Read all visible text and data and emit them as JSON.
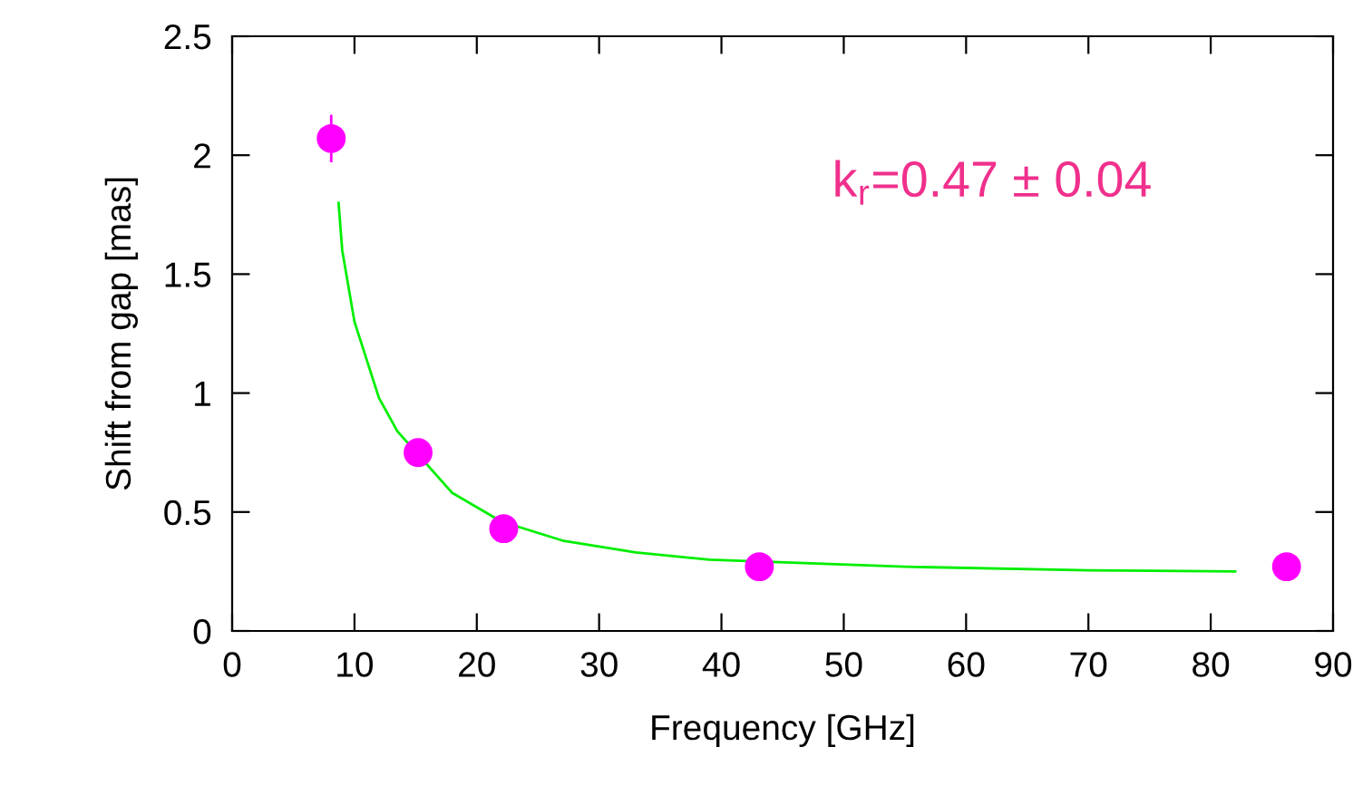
{
  "chart_data": {
    "type": "scatter",
    "xlabel": "Frequency [GHz]",
    "ylabel": "Shift from gap [mas]",
    "xlim": [
      0,
      90
    ],
    "ylim": [
      0,
      2.5
    ],
    "xticks": [
      0,
      10,
      20,
      30,
      40,
      50,
      60,
      70,
      80,
      90
    ],
    "yticks": [
      0,
      0.5,
      1,
      1.5,
      2,
      2.5
    ],
    "grid": false,
    "legend": false,
    "marker": "circle",
    "annotations": [
      "k$_{r}$=0.47 ± 0.04"
    ],
    "series": [
      {
        "type": "line",
        "color": "#00ee00",
        "marker": "none",
        "line_style": "solid",
        "x": [
          8.7,
          9,
          10,
          12,
          13.5,
          18,
          22,
          27,
          33,
          39,
          55,
          70,
          82
        ],
        "values": [
          1.8,
          1.6,
          1.3,
          0.98,
          0.84,
          0.58,
          0.46,
          0.38,
          0.33,
          0.3,
          0.27,
          0.255,
          0.25
        ]
      },
      {
        "type": "scatter",
        "color": "#ff00ff",
        "x": [
          8.1,
          15.2,
          22.2,
          43.1,
          86.2
        ],
        "values": [
          2.07,
          0.75,
          0.43,
          0.27,
          0.27
        ],
        "errors": [
          0.1,
          null,
          null,
          null,
          null
        ]
      }
    ]
  }
}
